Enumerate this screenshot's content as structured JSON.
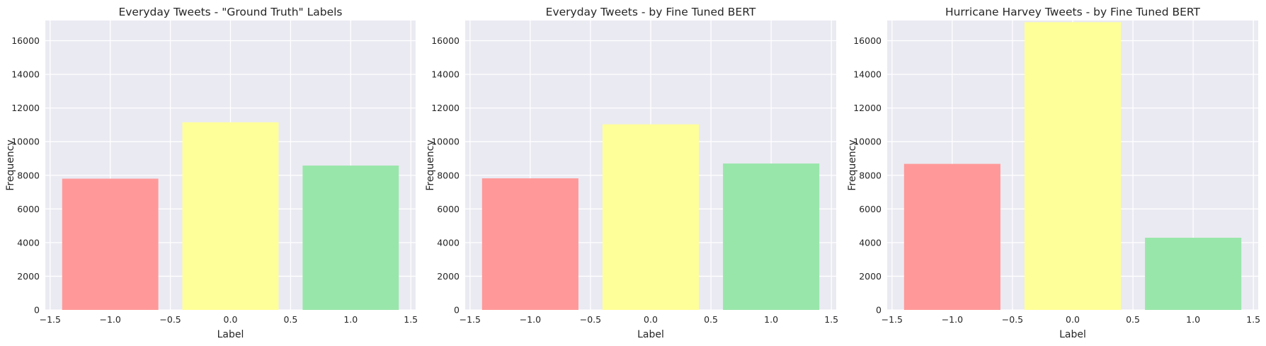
{
  "chart_data": [
    {
      "type": "bar",
      "title": "Everyday Tweets - \"Ground Truth\" Labels",
      "xlabel": "Label",
      "ylabel": "Frequency",
      "x": [
        -1.0,
        0.0,
        1.0
      ],
      "values": [
        7800,
        11150,
        8580
      ],
      "bar_width": 0.8,
      "colors": [
        "#ff9999",
        "#ffff99",
        "#99e6ab"
      ],
      "xlim": [
        -1.54,
        1.54
      ],
      "ylim": [
        0,
        17200
      ],
      "xticks": [
        -1.5,
        -1.0,
        -0.5,
        0.0,
        0.5,
        1.0,
        1.5
      ],
      "xtick_labels": [
        "−1.5",
        "−1.0",
        "−0.5",
        "0.0",
        "0.5",
        "1.0",
        "1.5"
      ],
      "yticks": [
        0,
        2000,
        4000,
        6000,
        8000,
        10000,
        12000,
        14000,
        16000
      ],
      "ytick_labels": [
        "0",
        "2000",
        "4000",
        "6000",
        "8000",
        "10000",
        "12000",
        "14000",
        "16000"
      ],
      "grid": true
    },
    {
      "type": "bar",
      "title": "Everyday Tweets - by Fine Tuned BERT",
      "xlabel": "Label",
      "ylabel": "Frequency",
      "x": [
        -1.0,
        0.0,
        1.0
      ],
      "values": [
        7820,
        11030,
        8700
      ],
      "bar_width": 0.8,
      "colors": [
        "#ff9999",
        "#ffff99",
        "#99e6ab"
      ],
      "xlim": [
        -1.54,
        1.54
      ],
      "ylim": [
        0,
        17200
      ],
      "xticks": [
        -1.5,
        -1.0,
        -0.5,
        0.0,
        0.5,
        1.0,
        1.5
      ],
      "xtick_labels": [
        "−1.5",
        "−1.0",
        "−0.5",
        "0.0",
        "0.5",
        "1.0",
        "1.5"
      ],
      "yticks": [
        0,
        2000,
        4000,
        6000,
        8000,
        10000,
        12000,
        14000,
        16000
      ],
      "ytick_labels": [
        "0",
        "2000",
        "4000",
        "6000",
        "8000",
        "10000",
        "12000",
        "14000",
        "16000"
      ],
      "grid": true
    },
    {
      "type": "bar",
      "title": "Hurricane Harvey Tweets - by Fine Tuned BERT",
      "xlabel": "Label",
      "ylabel": "Frequency",
      "x": [
        -1.0,
        0.0,
        1.0
      ],
      "values": [
        8680,
        17100,
        4290
      ],
      "bar_width": 0.8,
      "colors": [
        "#ff9999",
        "#ffff99",
        "#99e6ab"
      ],
      "xlim": [
        -1.54,
        1.54
      ],
      "ylim": [
        0,
        17200
      ],
      "xticks": [
        -1.5,
        -1.0,
        -0.5,
        0.0,
        0.5,
        1.0,
        1.5
      ],
      "xtick_labels": [
        "−1.5",
        "−1.0",
        "−0.5",
        "0.0",
        "0.5",
        "1.0",
        "1.5"
      ],
      "yticks": [
        0,
        2000,
        4000,
        6000,
        8000,
        10000,
        12000,
        14000,
        16000
      ],
      "ytick_labels": [
        "0",
        "2000",
        "4000",
        "6000",
        "8000",
        "10000",
        "12000",
        "14000",
        "16000"
      ],
      "grid": true
    }
  ]
}
